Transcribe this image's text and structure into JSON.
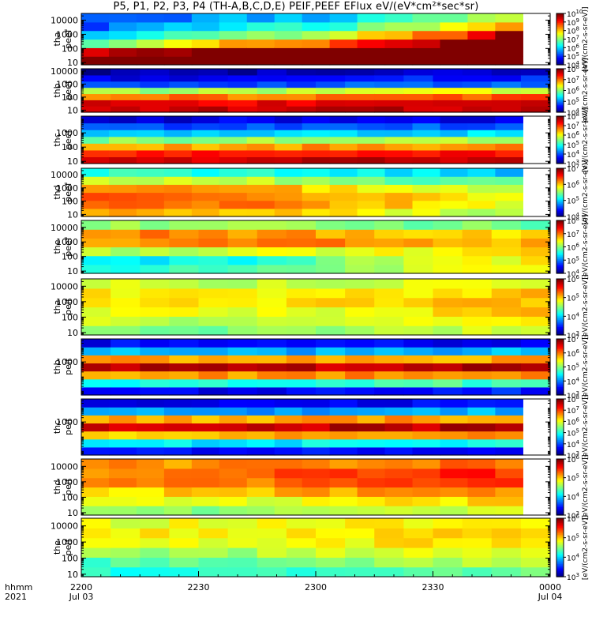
{
  "title": "P5, P1, P2, P3, P4 (TH-A,B,C,D,E) PEIF,PEEF EFlux eV/(eV*cm²*sec*sr)",
  "time_axis": {
    "row_label_top": "hhmm",
    "row_label_bottom": "2021",
    "ticks": [
      {
        "minute": 0,
        "top": "2200",
        "bottom": "Jul 03"
      },
      {
        "minute": 30,
        "top": "2230",
        "bottom": ""
      },
      {
        "minute": 60,
        "top": "2300",
        "bottom": ""
      },
      {
        "minute": 90,
        "top": "2330",
        "bottom": ""
      },
      {
        "minute": 120,
        "top": "0000",
        "bottom": "Jul 04"
      }
    ],
    "range_minutes": [
      0,
      120
    ]
  },
  "colorbar_unit_label": "[eV/(cm2-s-sr-eV)]",
  "chart_data": [
    {
      "type": "heatmap",
      "probe": "tha",
      "instrument": "peef",
      "ylabel": [
        "tha",
        "peef"
      ],
      "y_log": true,
      "ylim": [
        7,
        30000
      ],
      "yticks": [
        "10",
        "100",
        "1000",
        "10000"
      ],
      "colorbar": {
        "min_exp": 4,
        "max_exp": 10,
        "ticks": [
          "10^4",
          "10^5",
          "10^6",
          "10^7",
          "10^8",
          "10^9",
          "10^10"
        ]
      },
      "bins": [
        [
          1.3,
          0.9,
          0.5,
          0.3,
          0.2,
          0.2
        ],
        [
          1.4,
          1.0,
          0.6,
          0.4,
          0.3,
          0.2
        ],
        [
          1.4,
          1.0,
          0.7,
          0.5,
          0.3,
          0.3
        ],
        [
          1.5,
          1.1,
          0.7,
          0.5,
          0.4,
          0.3
        ],
        [
          1.5,
          1.2,
          0.8,
          0.6,
          0.4,
          0.3
        ],
        [
          1.6,
          1.3,
          0.9,
          0.7,
          0.5,
          0.4
        ],
        [
          1.7,
          1.4,
          1.0,
          0.8,
          0.6,
          0.5
        ],
        [
          1.7,
          1.5,
          1.2,
          1.0,
          0.7,
          0.6
        ]
      ],
      "data_end_minute": 113
    },
    {
      "type": "heatmap",
      "probe": "thb",
      "instrument": "peef",
      "ylabel": [
        "thb",
        "peef"
      ],
      "y_log": true,
      "ylim": [
        7,
        15000
      ],
      "yticks": [
        "10",
        "100",
        "1000",
        "10000"
      ],
      "colorbar": {
        "min_exp": 4,
        "max_exp": 8,
        "ticks": [
          "10^4",
          "10^5",
          "10^6",
          "10^7",
          "10^8"
        ]
      },
      "bins": [
        [
          0.92,
          0.9,
          0.75,
          0.52,
          0.18,
          0.1,
          0.03
        ],
        [
          0.93,
          0.9,
          0.76,
          0.55,
          0.2,
          0.12,
          0.05
        ],
        [
          0.94,
          0.91,
          0.78,
          0.58,
          0.22,
          0.14,
          0.06
        ],
        [
          0.94,
          0.92,
          0.8,
          0.6,
          0.25,
          0.15,
          0.07
        ]
      ],
      "data_end_minute": 120
    },
    {
      "type": "heatmap",
      "probe": "thc",
      "instrument": "peef",
      "ylabel": [
        "thc",
        "peef"
      ],
      "y_log": true,
      "ylim": [
        7,
        15000
      ],
      "yticks": [
        "10",
        "100",
        "1000"
      ],
      "colorbar": {
        "min_exp": 3,
        "max_exp": 8,
        "ticks": [
          "10^3",
          "10^4",
          "10^5",
          "10^6",
          "10^7",
          "10^8"
        ]
      },
      "bins": [
        [
          0.92,
          0.86,
          0.7,
          0.5,
          0.3,
          0.18,
          0.08
        ],
        [
          0.92,
          0.87,
          0.72,
          0.52,
          0.32,
          0.2,
          0.1
        ],
        [
          0.93,
          0.88,
          0.73,
          0.54,
          0.33,
          0.21,
          0.1
        ],
        [
          0.93,
          0.88,
          0.74,
          0.55,
          0.34,
          0.22,
          0.11
        ]
      ],
      "data_end_minute": 113
    },
    {
      "type": "heatmap",
      "probe": "thd",
      "instrument": "peef",
      "ylabel": [
        "thd",
        "peef"
      ],
      "y_log": true,
      "ylim": [
        7,
        30000
      ],
      "yticks": [
        "10",
        "100",
        "1000",
        "10000"
      ],
      "colorbar": {
        "min_exp": 4,
        "max_exp": 7,
        "ticks": [
          "10^4",
          "10^5",
          "10^6",
          "10^7"
        ]
      },
      "bins": [
        [
          0.7,
          0.78,
          0.8,
          0.75,
          0.6,
          0.42
        ],
        [
          0.68,
          0.77,
          0.78,
          0.72,
          0.57,
          0.4
        ],
        [
          0.62,
          0.7,
          0.7,
          0.64,
          0.5,
          0.36
        ],
        [
          0.55,
          0.62,
          0.6,
          0.55,
          0.44,
          0.32
        ]
      ],
      "data_end_minute": 113
    },
    {
      "type": "heatmap",
      "probe": "the",
      "instrument": "peef",
      "ylabel": [
        "the",
        "peef"
      ],
      "y_log": true,
      "ylim": [
        7,
        30000
      ],
      "yticks": [
        "10",
        "100",
        "1000",
        "10000"
      ],
      "colorbar": {
        "min_exp": 4,
        "max_exp": 8,
        "ticks": [
          "10^4",
          "10^5",
          "10^6",
          "10^7",
          "10^8"
        ]
      },
      "bins": [
        [
          0.4,
          0.35,
          0.55,
          0.72,
          0.76,
          0.52
        ],
        [
          0.45,
          0.4,
          0.58,
          0.74,
          0.74,
          0.52
        ],
        [
          0.55,
          0.55,
          0.62,
          0.74,
          0.7,
          0.5
        ],
        [
          0.62,
          0.64,
          0.66,
          0.7,
          0.64,
          0.48
        ]
      ],
      "data_end_minute": 120
    },
    {
      "type": "heatmap",
      "probe": "tha",
      "instrument": "peif",
      "ylabel": [
        "tha",
        "peif"
      ],
      "y_log": true,
      "ylim": [
        7,
        30000
      ],
      "yticks": [
        "10",
        "100",
        "1000",
        "10000"
      ],
      "colorbar": {
        "min_exp": 3,
        "max_exp": 6,
        "ticks": [
          "10^3",
          "10^4",
          "10^5",
          "10^6"
        ]
      },
      "bins": [
        [
          0.5,
          0.56,
          0.62,
          0.66,
          0.64,
          0.58
        ],
        [
          0.5,
          0.55,
          0.6,
          0.64,
          0.62,
          0.56
        ],
        [
          0.55,
          0.58,
          0.62,
          0.66,
          0.64,
          0.58
        ],
        [
          0.6,
          0.64,
          0.68,
          0.7,
          0.68,
          0.62
        ]
      ],
      "data_end_minute": 120
    },
    {
      "type": "heatmap",
      "probe": "thb",
      "instrument": "peif",
      "ylabel": [
        "thb",
        "peif"
      ],
      "y_log": true,
      "ylim": [
        5,
        40000
      ],
      "yticks": [
        "1000"
      ],
      "colorbar": {
        "min_exp": 3,
        "max_exp": 7,
        "ticks": [
          "10^3",
          "10^4",
          "10^5",
          "10^6",
          "10^7"
        ]
      },
      "bins": [
        [
          0.1,
          0.4,
          0.72,
          0.95,
          0.72,
          0.3,
          0.12
        ],
        [
          0.12,
          0.42,
          0.72,
          0.93,
          0.7,
          0.28,
          0.1
        ],
        [
          0.14,
          0.44,
          0.74,
          0.94,
          0.7,
          0.3,
          0.12
        ],
        [
          0.15,
          0.45,
          0.75,
          0.95,
          0.72,
          0.3,
          0.12
        ]
      ],
      "data_end_minute": 120
    },
    {
      "type": "heatmap",
      "probe": "thc",
      "instrument": "peif",
      "ylabel": [
        "thc",
        "peif"
      ],
      "y_log": true,
      "ylim": [
        5,
        40000
      ],
      "yticks": [
        "1000"
      ],
      "colorbar": {
        "min_exp": 3,
        "max_exp": 8,
        "ticks": [
          "10^3",
          "10^4",
          "10^5",
          "10^6",
          "10^7",
          "10^8"
        ]
      },
      "bins": [
        [
          0.12,
          0.35,
          0.68,
          0.92,
          0.7,
          0.28,
          0.1
        ],
        [
          0.12,
          0.36,
          0.7,
          0.93,
          0.7,
          0.26,
          0.1
        ],
        [
          0.13,
          0.38,
          0.72,
          0.94,
          0.72,
          0.28,
          0.12
        ],
        [
          0.14,
          0.4,
          0.73,
          0.94,
          0.72,
          0.3,
          0.12
        ]
      ],
      "data_end_minute": 113
    },
    {
      "type": "heatmap",
      "probe": "thd",
      "instrument": "peif",
      "ylabel": [
        "thd",
        "peif"
      ],
      "y_log": true,
      "ylim": [
        7,
        30000
      ],
      "yticks": [
        "10",
        "100",
        "1000",
        "10000"
      ],
      "colorbar": {
        "min_exp": 3,
        "max_exp": 6,
        "ticks": [
          "10^3",
          "10^4",
          "10^5",
          "10^6"
        ]
      },
      "bins": [
        [
          0.5,
          0.58,
          0.65,
          0.72,
          0.75,
          0.72
        ],
        [
          0.52,
          0.6,
          0.68,
          0.76,
          0.78,
          0.74
        ],
        [
          0.56,
          0.64,
          0.72,
          0.8,
          0.82,
          0.76
        ],
        [
          0.58,
          0.66,
          0.74,
          0.82,
          0.84,
          0.78
        ]
      ],
      "data_end_minute": 113
    },
    {
      "type": "heatmap",
      "probe": "the",
      "instrument": "peif",
      "ylabel": [
        "the",
        "peif"
      ],
      "y_log": true,
      "ylim": [
        7,
        30000
      ],
      "yticks": [
        "10",
        "100",
        "1000",
        "10000"
      ],
      "colorbar": {
        "min_exp": 3,
        "max_exp": 6,
        "ticks": [
          "10^3",
          "10^4",
          "10^5",
          "10^6"
        ]
      },
      "bins": [
        [
          0.4,
          0.45,
          0.52,
          0.58,
          0.62,
          0.6
        ],
        [
          0.42,
          0.48,
          0.54,
          0.6,
          0.64,
          0.62
        ],
        [
          0.46,
          0.52,
          0.58,
          0.64,
          0.66,
          0.62
        ],
        [
          0.5,
          0.56,
          0.62,
          0.68,
          0.7,
          0.66
        ]
      ],
      "data_end_minute": 120
    }
  ]
}
